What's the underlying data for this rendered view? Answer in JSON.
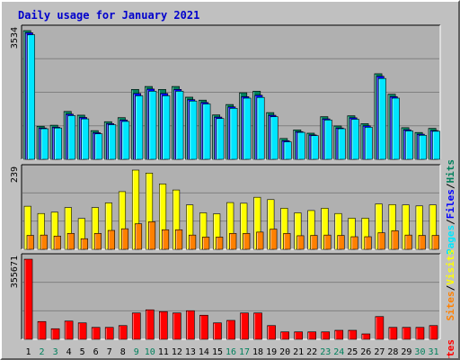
{
  "chart_data": [
    {
      "type": "bar",
      "title": "Daily usage for January 2021",
      "categories": [
        "1",
        "2",
        "3",
        "4",
        "5",
        "6",
        "7",
        "8",
        "9",
        "10",
        "11",
        "12",
        "13",
        "14",
        "15",
        "16",
        "17",
        "18",
        "19",
        "20",
        "21",
        "22",
        "23",
        "24",
        "25",
        "26",
        "27",
        "28",
        "29",
        "30",
        "31"
      ],
      "weekend_days": [
        "2",
        "3",
        "9",
        "10",
        "16",
        "17",
        "23",
        "24",
        "30",
        "31"
      ],
      "y_max_label": "3534",
      "series": [
        {
          "name": "Hits",
          "color": "#00805c",
          "values": [
            3534,
            909,
            937,
            1314,
            1213,
            788,
            1033,
            1145,
            1919,
            2000,
            1919,
            2000,
            1707,
            1626,
            1220,
            1505,
            1828,
            1869,
            1283,
            572,
            808,
            718,
            1172,
            916,
            1196,
            980,
            2350,
            1788,
            869,
            737,
            851
          ]
        },
        {
          "name": "Files",
          "color": "#0000ff",
          "values": [
            3477,
            860,
            880,
            1240,
            1150,
            730,
            980,
            1080,
            1808,
            1930,
            1808,
            1920,
            1640,
            1560,
            1160,
            1440,
            1720,
            1760,
            1210,
            510,
            760,
            670,
            1110,
            860,
            1140,
            920,
            2280,
            1720,
            810,
            690,
            790
          ]
        },
        {
          "name": "Pages",
          "color": "#00e6ff",
          "values": [
            3420,
            840,
            860,
            1200,
            1110,
            700,
            950,
            1040,
            1744,
            1870,
            1744,
            1870,
            1600,
            1520,
            1120,
            1400,
            1680,
            1700,
            1170,
            480,
            740,
            650,
            1080,
            840,
            1100,
            880,
            2220,
            1680,
            780,
            660,
            770
          ]
        }
      ],
      "legend": [
        "Pages",
        "/",
        "Files",
        "/",
        "Hits"
      ]
    },
    {
      "type": "bar",
      "categories": [
        "1",
        "2",
        "3",
        "4",
        "5",
        "6",
        "7",
        "8",
        "9",
        "10",
        "11",
        "12",
        "13",
        "14",
        "15",
        "16",
        "17",
        "18",
        "19",
        "20",
        "21",
        "22",
        "23",
        "24",
        "25",
        "26",
        "27",
        "28",
        "29",
        "30",
        "31"
      ],
      "y_max_label": "239",
      "series": [
        {
          "name": "Visits",
          "color": "#ffff00",
          "values": [
            130,
            108,
            112,
            126,
            93,
            126,
            140,
            174,
            239,
            230,
            197,
            179,
            134,
            110,
            107,
            141,
            139,
            157,
            150,
            124,
            110,
            117,
            124,
            108,
            94,
            94,
            137,
            135,
            134,
            131,
            134
          ]
        },
        {
          "name": "Sites",
          "color": "#ff8000",
          "values": [
            42,
            43,
            40,
            48,
            32,
            48,
            57,
            62,
            77,
            83,
            59,
            59,
            43,
            37,
            37,
            48,
            48,
            52,
            61,
            48,
            41,
            42,
            43,
            42,
            38,
            38,
            50,
            56,
            43,
            42,
            42
          ]
        }
      ],
      "legend": [
        "Sites",
        "/",
        "Visits"
      ]
    },
    {
      "type": "bar",
      "categories": [
        "1",
        "2",
        "3",
        "4",
        "5",
        "6",
        "7",
        "8",
        "9",
        "10",
        "11",
        "12",
        "13",
        "14",
        "15",
        "16",
        "17",
        "18",
        "19",
        "20",
        "21",
        "22",
        "23",
        "24",
        "25",
        "26",
        "27",
        "28",
        "29",
        "30",
        "31"
      ],
      "y_max_label": "355671",
      "series": [
        {
          "name": "KBytes",
          "color": "#ff0000",
          "values": [
            355671,
            79000,
            47000,
            81000,
            73000,
            53000,
            53000,
            61000,
            117000,
            131000,
            123000,
            117000,
            127000,
            107000,
            73000,
            84000,
            117000,
            117000,
            61000,
            33000,
            33000,
            33000,
            33000,
            40000,
            40000,
            24000,
            101000,
            53000,
            53000,
            53000,
            61000
          ]
        }
      ],
      "legend": [
        "KBytes"
      ]
    }
  ],
  "colors": {
    "panel": "#c0c0c0",
    "plot_bg": "#b0b0b0",
    "axis_shadow": "#000000",
    "axis_light": "#ffffff",
    "grid": "#808080",
    "weekday_label": "#000000",
    "weekend_label": "#00805c",
    "title": "#0000cc",
    "legend_sep": "#000000"
  }
}
